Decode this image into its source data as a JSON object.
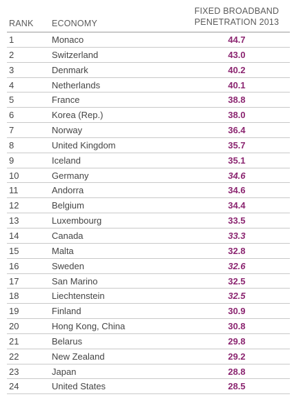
{
  "table": {
    "headers": {
      "rank": "RANK",
      "economy": "ECONOMY",
      "value_line1": "FIXED BROADBAND",
      "value_line2": "PENETRATION 2013"
    },
    "accent_color": "#8b2570",
    "rows": [
      {
        "rank": "1",
        "economy": "Monaco",
        "value": "44.7",
        "italic": false
      },
      {
        "rank": "2",
        "economy": "Switzerland",
        "value": "43.0",
        "italic": false
      },
      {
        "rank": "3",
        "economy": "Denmark",
        "value": "40.2",
        "italic": false
      },
      {
        "rank": "4",
        "economy": "Netherlands",
        "value": "40.1",
        "italic": false
      },
      {
        "rank": "5",
        "economy": "France",
        "value": "38.8",
        "italic": false
      },
      {
        "rank": "6",
        "economy": "Korea (Rep.)",
        "value": "38.0",
        "italic": false
      },
      {
        "rank": "7",
        "economy": "Norway",
        "value": "36.4",
        "italic": false
      },
      {
        "rank": "8",
        "economy": "United Kingdom",
        "value": "35.7",
        "italic": false
      },
      {
        "rank": "9",
        "economy": "Iceland",
        "value": "35.1",
        "italic": false
      },
      {
        "rank": "10",
        "economy": "Germany",
        "value": "34.6",
        "italic": true
      },
      {
        "rank": "11",
        "economy": "Andorra",
        "value": "34.6",
        "italic": false
      },
      {
        "rank": "12",
        "economy": "Belgium",
        "value": "34.4",
        "italic": false
      },
      {
        "rank": "13",
        "economy": "Luxembourg",
        "value": "33.5",
        "italic": false
      },
      {
        "rank": "14",
        "economy": "Canada",
        "value": "33.3",
        "italic": true
      },
      {
        "rank": "15",
        "economy": "Malta",
        "value": "32.8",
        "italic": false
      },
      {
        "rank": "16",
        "economy": "Sweden",
        "value": "32.6",
        "italic": true
      },
      {
        "rank": "17",
        "economy": "San Marino",
        "value": "32.5",
        "italic": false
      },
      {
        "rank": "18",
        "economy": "Liechtenstein",
        "value": "32.5",
        "italic": true
      },
      {
        "rank": "19",
        "economy": "Finland",
        "value": "30.9",
        "italic": false
      },
      {
        "rank": "20",
        "economy": "Hong Kong, China",
        "value": "30.8",
        "italic": false
      },
      {
        "rank": "21",
        "economy": "Belarus",
        "value": "29.8",
        "italic": false
      },
      {
        "rank": "22",
        "economy": "New Zealand",
        "value": "29.2",
        "italic": false
      },
      {
        "rank": "23",
        "economy": "Japan",
        "value": "28.8",
        "italic": false
      },
      {
        "rank": "24",
        "economy": "United States",
        "value": "28.5",
        "italic": false
      }
    ]
  }
}
